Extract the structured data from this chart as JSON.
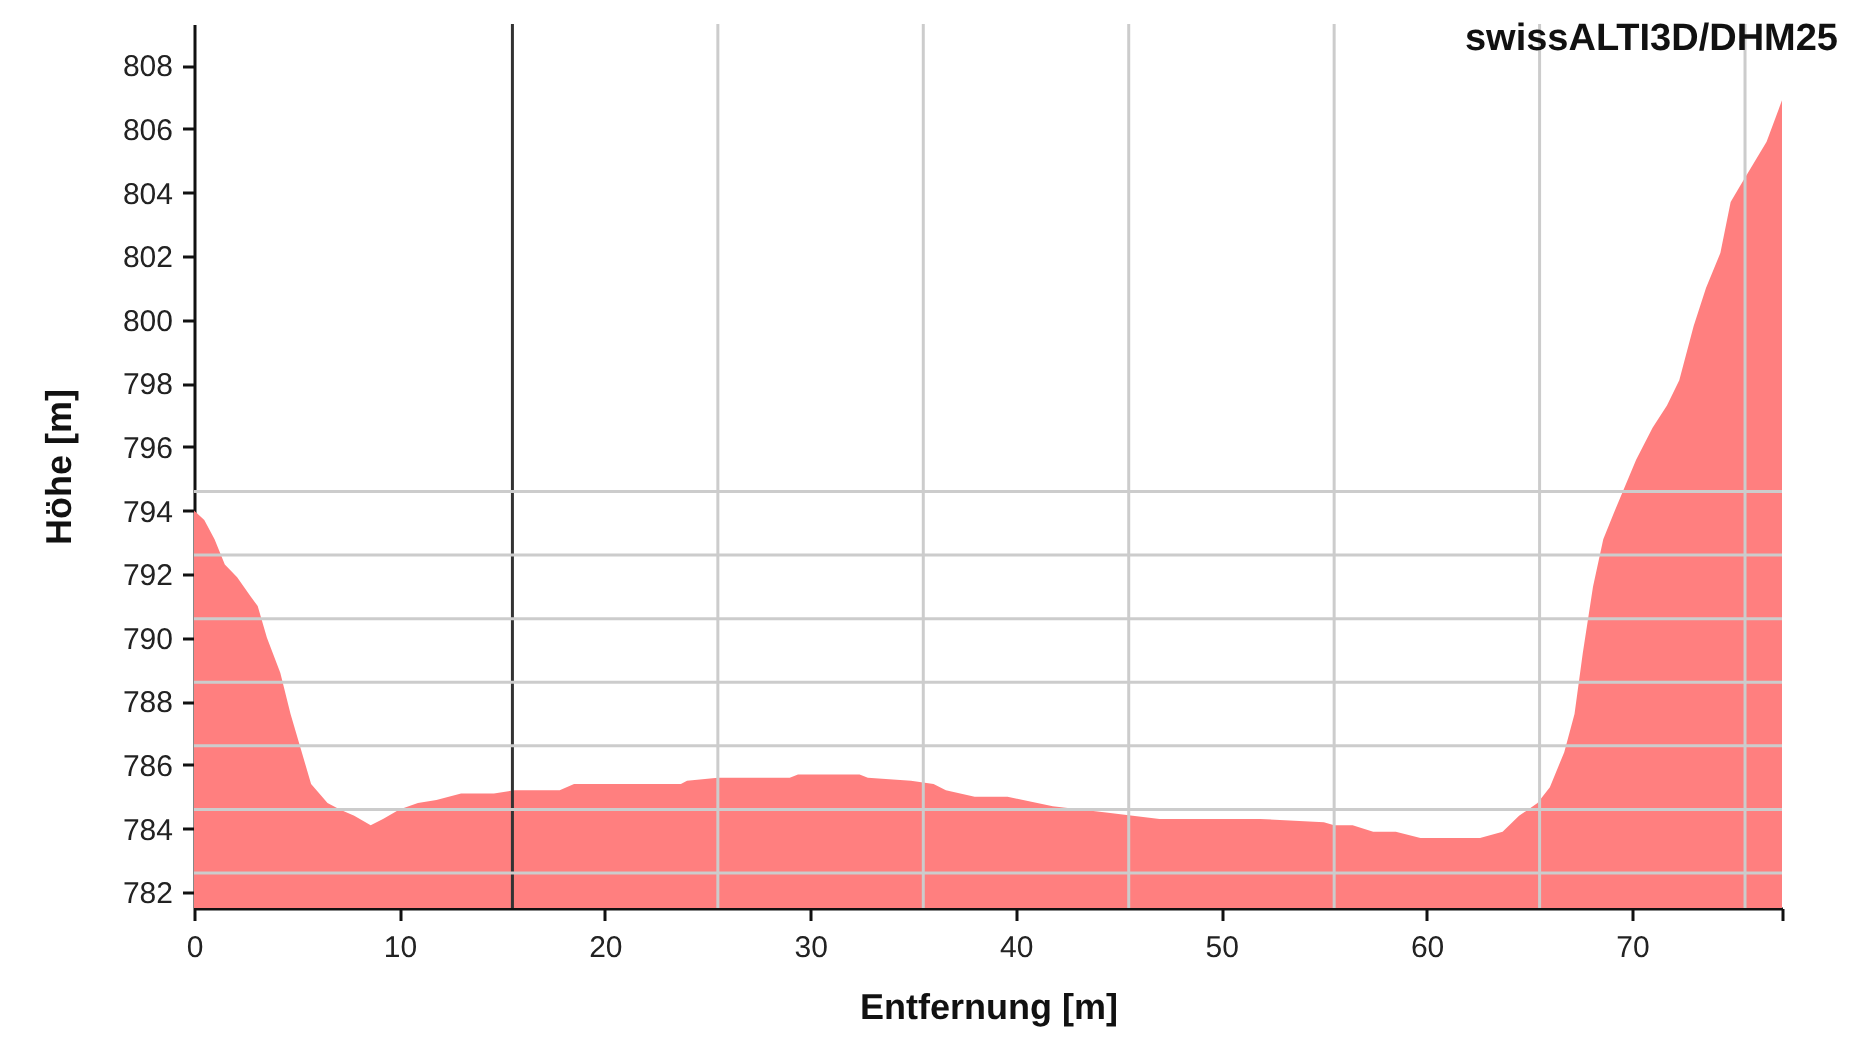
{
  "chart_data": {
    "type": "area",
    "title": "swissALTI3D/DHM25",
    "xlabel": "Entfernung [m]",
    "ylabel": "Höhe [m]",
    "x": [
      0,
      0.5,
      1.0,
      1.5,
      2.1,
      2.75,
      3.1,
      3.55,
      4.2,
      4.7,
      5.2,
      5.7,
      6.5,
      7.1,
      7.8,
      8.6,
      9.2,
      10.0,
      10.9,
      11.8,
      13.0,
      14.6,
      15.6,
      17.8,
      18.5,
      22.7,
      23.7,
      24.0,
      25.5,
      29.0,
      29.4,
      32.4,
      32.8,
      34.9,
      36.0,
      36.6,
      38.0,
      39.6,
      41.8,
      44.4,
      45.7,
      47.0,
      51.9,
      55.0,
      55.5,
      56.4,
      57.4,
      58.5,
      59.7,
      62.6,
      63.7,
      64.5,
      65.4,
      66.0,
      66.7,
      67.2,
      67.6,
      68.1,
      68.6,
      69.1,
      70.2,
      71.0,
      71.7,
      72.3,
      73.0,
      73.6,
      74.3,
      74.8,
      75.25,
      75.9,
      76.55,
      77.3
    ],
    "values": [
      794.0,
      793.7,
      793.1,
      792.3,
      791.9,
      791.3,
      791.0,
      790.0,
      788.9,
      787.6,
      786.5,
      785.4,
      784.8,
      784.6,
      784.4,
      784.1,
      784.3,
      784.6,
      784.8,
      784.9,
      785.1,
      785.1,
      785.2,
      785.2,
      785.4,
      785.4,
      785.4,
      785.5,
      785.6,
      785.6,
      785.7,
      785.7,
      785.6,
      785.5,
      785.4,
      785.2,
      785.0,
      785.0,
      784.7,
      784.5,
      784.4,
      784.3,
      784.3,
      784.2,
      784.1,
      784.1,
      783.9,
      783.9,
      783.7,
      783.7,
      783.9,
      784.4,
      784.8,
      785.3,
      786.4,
      787.6,
      789.5,
      791.6,
      793.1,
      793.9,
      795.6,
      796.6,
      797.3,
      798.1,
      799.8,
      801.0,
      802.1,
      803.7,
      804.2,
      804.9,
      805.6,
      806.9
    ],
    "color": "#ff7f7f",
    "xlim": [
      0,
      77.3
    ],
    "ylim": [
      781.5,
      809.3
    ],
    "xticks": [
      0,
      10,
      20,
      30,
      40,
      50,
      60,
      70,
      {
        "value": 77.3,
        "label": null
      }
    ],
    "yticks": [
      782,
      784,
      786,
      788,
      790,
      792,
      794,
      796,
      798,
      800,
      802,
      804,
      806,
      808
    ],
    "ref_lines": [
      {
        "axis": "x",
        "value": 15.5,
        "color": "#333333"
      },
      {
        "axis": "x",
        "value": 25.5,
        "color": "#cccccc"
      },
      {
        "axis": "x",
        "value": 35.5,
        "color": "#cccccc"
      },
      {
        "axis": "x",
        "value": 45.5,
        "color": "#cccccc"
      },
      {
        "axis": "x",
        "value": 55.5,
        "color": "#cccccc"
      },
      {
        "axis": "x",
        "value": 65.5,
        "color": "#cccccc"
      },
      {
        "axis": "x",
        "value": 75.5,
        "color": "#cccccc"
      },
      {
        "axis": "y",
        "value": 794.6,
        "color": "#cccccc"
      },
      {
        "axis": "y",
        "value": 792.6,
        "color": "#cccccc"
      },
      {
        "axis": "y",
        "value": 790.6,
        "color": "#cccccc"
      },
      {
        "axis": "y",
        "value": 788.6,
        "color": "#cccccc"
      },
      {
        "axis": "y",
        "value": 786.6,
        "color": "#cccccc"
      },
      {
        "axis": "y",
        "value": 784.6,
        "color": "#cccccc"
      },
      {
        "axis": "y",
        "value": 782.6,
        "color": "#cccccc"
      }
    ]
  }
}
